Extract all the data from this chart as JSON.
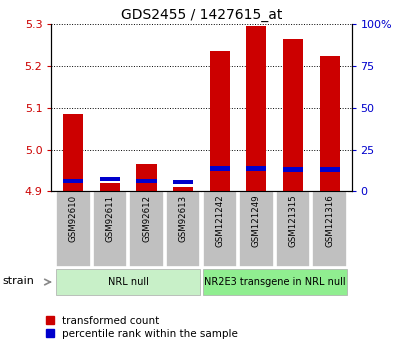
{
  "title": "GDS2455 / 1427615_at",
  "samples": [
    "GSM92610",
    "GSM92611",
    "GSM92612",
    "GSM92613",
    "GSM121242",
    "GSM121249",
    "GSM121315",
    "GSM121316"
  ],
  "red_values": [
    5.085,
    4.92,
    4.965,
    4.91,
    5.235,
    5.295,
    5.265,
    5.225
  ],
  "blue_values": [
    4.925,
    4.93,
    4.925,
    4.923,
    4.955,
    4.955,
    4.952,
    4.952
  ],
  "ylim": [
    4.9,
    5.3
  ],
  "yticks": [
    4.9,
    5.0,
    5.1,
    5.2,
    5.3
  ],
  "right_yticks_pct": [
    0,
    25,
    50,
    75,
    100
  ],
  "right_ylabels": [
    "0",
    "25",
    "50",
    "75",
    "100%"
  ],
  "groups": [
    {
      "label": "NRL null",
      "start": 0,
      "end": 4,
      "color": "#c8f0c8"
    },
    {
      "label": "NR2E3 transgene in NRL null",
      "start": 4,
      "end": 8,
      "color": "#90ee90"
    }
  ],
  "bar_color_red": "#cc0000",
  "bar_color_blue": "#0000cc",
  "bar_width": 0.55,
  "tick_label_color_left": "#cc0000",
  "tick_label_color_right": "#0000cc",
  "background_xtick": "#c0c0c0",
  "legend_labels": [
    "transformed count",
    "percentile rank within the sample"
  ],
  "strain_label": "strain",
  "base_value": 4.9,
  "blue_bar_height": 0.011
}
